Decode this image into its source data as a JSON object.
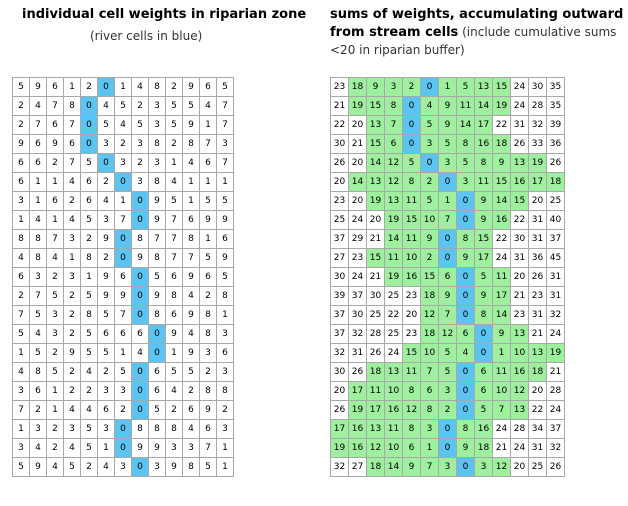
{
  "left_panel": {
    "title": "individual cell weights in riparian zone",
    "subtitle": "(river cells in blue)",
    "river_color": "#5bc4f0",
    "cells": [
      [
        5,
        9,
        6,
        1,
        2,
        0,
        1,
        4,
        8,
        2,
        9,
        6,
        5
      ],
      [
        2,
        4,
        7,
        8,
        0,
        4,
        5,
        2,
        3,
        5,
        5,
        4,
        7
      ],
      [
        2,
        7,
        6,
        7,
        0,
        5,
        4,
        5,
        3,
        5,
        9,
        1,
        7
      ],
      [
        9,
        6,
        9,
        6,
        0,
        3,
        2,
        3,
        8,
        2,
        8,
        7,
        3
      ],
      [
        6,
        6,
        2,
        7,
        5,
        0,
        3,
        2,
        3,
        1,
        4,
        6,
        7
      ],
      [
        6,
        1,
        1,
        4,
        6,
        2,
        0,
        3,
        8,
        4,
        1,
        1,
        1
      ],
      [
        3,
        1,
        6,
        2,
        6,
        4,
        1,
        0,
        9,
        5,
        1,
        5,
        5
      ],
      [
        1,
        4,
        1,
        4,
        5,
        3,
        7,
        0,
        9,
        7,
        6,
        9,
        9
      ],
      [
        8,
        8,
        7,
        3,
        2,
        9,
        0,
        8,
        7,
        7,
        8,
        1,
        6
      ],
      [
        4,
        8,
        4,
        1,
        8,
        2,
        0,
        9,
        8,
        7,
        7,
        5,
        9
      ],
      [
        6,
        3,
        2,
        3,
        1,
        9,
        6,
        0,
        5,
        6,
        9,
        6,
        5
      ],
      [
        2,
        7,
        5,
        2,
        5,
        9,
        9,
        0,
        9,
        8,
        4,
        2,
        8
      ],
      [
        7,
        5,
        3,
        2,
        8,
        5,
        7,
        0,
        8,
        6,
        9,
        8,
        1
      ],
      [
        5,
        4,
        3,
        2,
        5,
        6,
        6,
        6,
        0,
        9,
        4,
        8,
        3
      ],
      [
        1,
        5,
        2,
        9,
        5,
        5,
        1,
        4,
        0,
        1,
        9,
        3,
        6
      ],
      [
        4,
        8,
        5,
        2,
        4,
        2,
        5,
        0,
        6,
        5,
        5,
        2,
        3
      ],
      [
        3,
        6,
        1,
        2,
        2,
        3,
        3,
        0,
        6,
        4,
        2,
        8,
        8
      ],
      [
        7,
        2,
        1,
        4,
        4,
        6,
        2,
        0,
        5,
        2,
        6,
        9,
        2
      ],
      [
        1,
        3,
        2,
        3,
        5,
        3,
        0,
        8,
        8,
        8,
        4,
        6,
        3
      ],
      [
        3,
        4,
        2,
        4,
        5,
        1,
        0,
        9,
        9,
        3,
        3,
        7,
        1
      ],
      [
        5,
        9,
        4,
        5,
        2,
        4,
        3,
        0,
        3,
        9,
        8,
        5,
        1
      ]
    ]
  },
  "right_panel": {
    "title_line1": "sums of weights, accumulating outward",
    "title_line2_bold": "from stream cells",
    "title_line2_rest": " (include cumulative sums",
    "title_line3": "<20 in riparian buffer)",
    "river_color": "#5bc4f0",
    "buffer_color": "#9ef09e",
    "cells": [
      [
        23,
        18,
        9,
        3,
        2,
        0,
        1,
        5,
        13,
        15,
        24,
        30,
        35
      ],
      [
        21,
        19,
        15,
        8,
        0,
        4,
        9,
        11,
        14,
        19,
        24,
        28,
        35
      ],
      [
        22,
        20,
        13,
        7,
        0,
        5,
        9,
        14,
        17,
        22,
        31,
        32,
        39
      ],
      [
        30,
        21,
        15,
        6,
        0,
        3,
        5,
        8,
        16,
        18,
        26,
        33,
        36
      ],
      [
        26,
        20,
        14,
        12,
        5,
        0,
        3,
        5,
        8,
        9,
        13,
        19,
        26
      ],
      [
        20,
        14,
        13,
        12,
        8,
        2,
        0,
        3,
        11,
        15,
        16,
        17,
        18
      ],
      [
        23,
        20,
        19,
        13,
        11,
        5,
        1,
        0,
        9,
        14,
        15,
        20,
        25
      ],
      [
        25,
        24,
        20,
        19,
        15,
        10,
        7,
        0,
        9,
        16,
        22,
        31,
        40
      ],
      [
        37,
        29,
        21,
        14,
        11,
        9,
        0,
        8,
        15,
        22,
        30,
        31,
        37
      ],
      [
        27,
        23,
        15,
        11,
        10,
        2,
        0,
        9,
        17,
        24,
        31,
        36,
        45
      ],
      [
        30,
        24,
        21,
        19,
        16,
        15,
        6,
        0,
        5,
        11,
        20,
        26,
        31
      ],
      [
        39,
        37,
        30,
        25,
        23,
        18,
        9,
        0,
        9,
        17,
        21,
        23,
        31
      ],
      [
        37,
        30,
        25,
        22,
        20,
        12,
        7,
        0,
        8,
        14,
        23,
        31,
        32
      ],
      [
        37,
        32,
        28,
        25,
        23,
        18,
        12,
        6,
        0,
        9,
        13,
        21,
        24
      ],
      [
        32,
        31,
        26,
        24,
        15,
        10,
        5,
        4,
        0,
        1,
        10,
        13,
        19
      ],
      [
        30,
        26,
        18,
        13,
        11,
        7,
        5,
        0,
        6,
        11,
        16,
        18,
        21
      ],
      [
        20,
        17,
        11,
        10,
        8,
        6,
        3,
        0,
        6,
        10,
        12,
        20,
        28
      ],
      [
        26,
        19,
        17,
        16,
        12,
        8,
        2,
        0,
        5,
        7,
        13,
        22,
        24
      ],
      [
        17,
        16,
        13,
        11,
        8,
        3,
        0,
        8,
        16,
        24,
        28,
        34,
        37
      ],
      [
        19,
        16,
        12,
        10,
        6,
        1,
        0,
        9,
        18,
        21,
        24,
        31,
        32
      ],
      [
        32,
        27,
        18,
        14,
        9,
        7,
        3,
        0,
        3,
        12,
        20,
        25,
        26
      ]
    ]
  }
}
